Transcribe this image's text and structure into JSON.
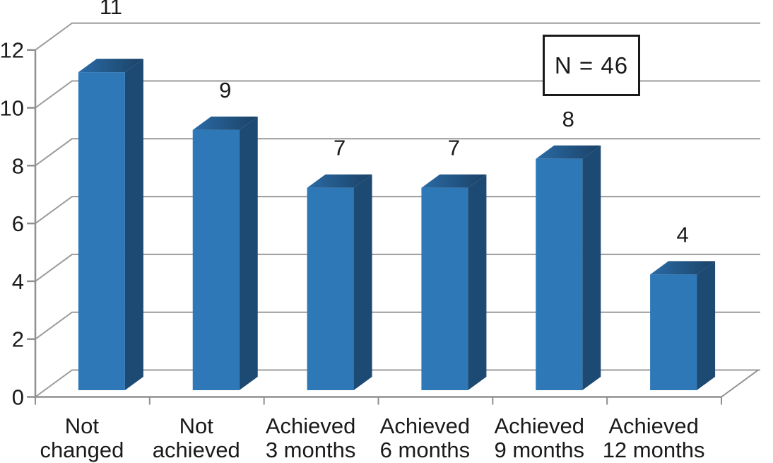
{
  "chart": {
    "annotation_label": "N = 46",
    "colors": {
      "background": "#FFFFFF",
      "bar_front": "#2E78B8",
      "bar_side": "#1D4A72",
      "bar_top_light": "#2A6AA5",
      "bar_top_dark": "#1B4266",
      "gridline": "#9B9B9B",
      "axis": "#8F8F8F",
      "text": "#1A1A1A",
      "annotation_border": "#1A1A1A"
    }
  },
  "chart_data": {
    "type": "bar",
    "projection": "3d",
    "title": "",
    "xlabel": "",
    "ylabel": "",
    "categories": [
      "Not changed",
      "Not achieved",
      "Achieved 3 months",
      "Achieved 6 months",
      "Achieved 9 months",
      "Achieved 12 months"
    ],
    "values": [
      11,
      9,
      7,
      7,
      8,
      4
    ],
    "data_labels_shown": true,
    "ylim": [
      0,
      12
    ],
    "yticks": [
      0,
      2,
      4,
      6,
      8,
      10,
      12
    ],
    "grid": true,
    "legend": false,
    "annotation": "N = 46"
  }
}
